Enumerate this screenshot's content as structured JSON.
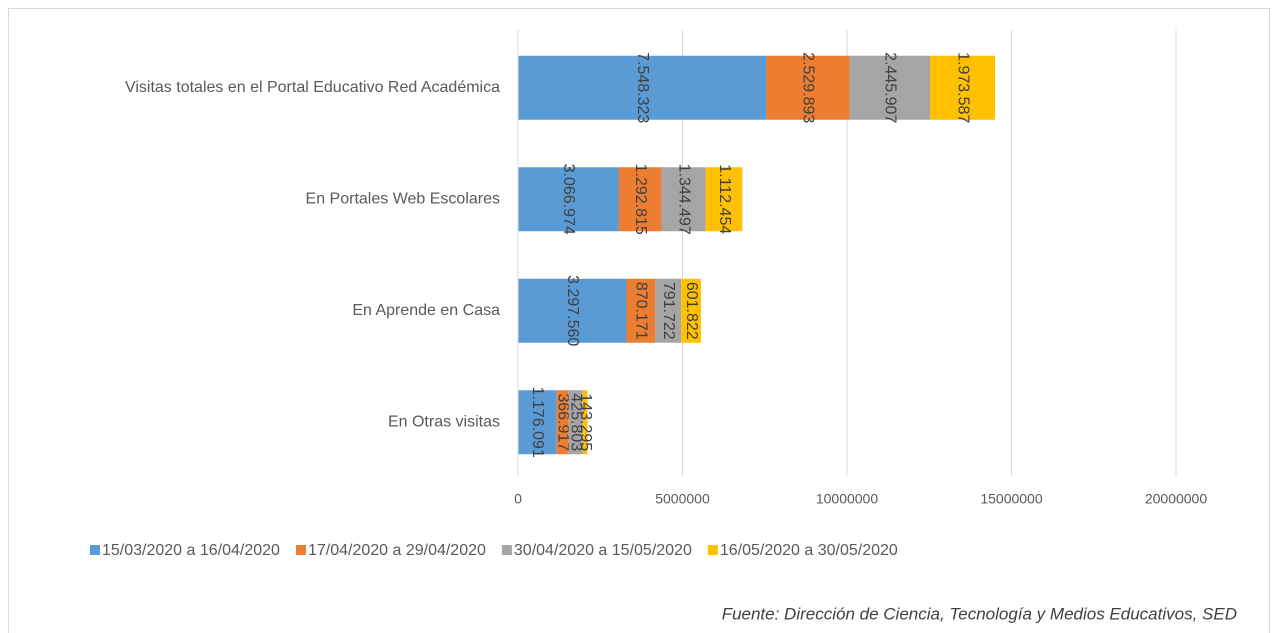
{
  "chart_data": {
    "type": "stacked_bar_horizontal",
    "categories": [
      "Visitas totales en el Portal Educativo Red Académica",
      "En Portales Web Escolares",
      "En Aprende en Casa",
      "En Otras visitas"
    ],
    "series": [
      {
        "name": "15/03/2020 a 16/04/2020",
        "color": "#5b9bd5",
        "values": [
          7548323,
          3066974,
          3297560,
          1176091
        ],
        "value_labels": [
          "7.548.323",
          "3.066.974",
          "3.297.560",
          "1.176.091"
        ]
      },
      {
        "name": "17/04/2020 a 29/04/2020",
        "color": "#ed7d31",
        "values": [
          2529893,
          1292815,
          870171,
          366917
        ],
        "value_labels": [
          "2.529.893",
          "1.292.815",
          "870.171",
          "366.917"
        ]
      },
      {
        "name": "30/04/2020 a 15/05/2020",
        "color": "#a5a5a5",
        "values": [
          2445907,
          1344497,
          791722,
          425803
        ],
        "value_labels": [
          "2.445.907",
          "1.344.497",
          "791.722",
          "425.803"
        ]
      },
      {
        "name": "16/05/2020 a 30/05/2020",
        "color": "#ffc000",
        "values": [
          1973587,
          1112454,
          601822,
          143295
        ],
        "value_labels": [
          "1.973.587",
          "1.112.454",
          "601.822",
          "143.295"
        ]
      }
    ],
    "xlim": [
      0,
      20000000
    ],
    "xticks": [
      0,
      5000000,
      10000000,
      15000000,
      20000000
    ],
    "grid": true,
    "legend": "bottom",
    "source": "Fuente: Dirección de Ciencia, Tecnología y Medios Educativos, SED"
  }
}
